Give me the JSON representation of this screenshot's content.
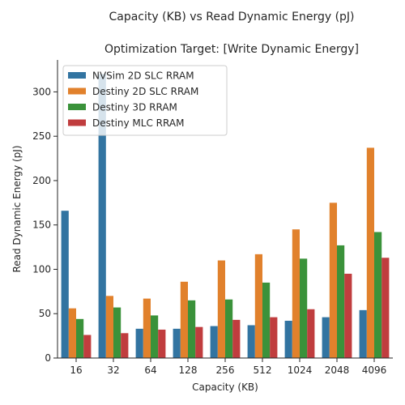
{
  "chart_data": {
    "type": "bar",
    "title": "Capacity (KB) vs Read Dynamic Energy (pJ)",
    "subtitle": "Optimization Target: [Write Dynamic Energy]",
    "xlabel": "Capacity (KB)",
    "ylabel": "Read Dynamic Energy (pJ)",
    "categories": [
      "16",
      "32",
      "64",
      "128",
      "256",
      "512",
      "1024",
      "2048",
      "4096"
    ],
    "ylim": [
      0,
      336
    ],
    "yticks": [
      0,
      50,
      100,
      150,
      200,
      250,
      300
    ],
    "legend_position": "top-left",
    "series": [
      {
        "name": "NVSim 2D SLC RRAM",
        "color": "#3274a1",
        "values": [
          166,
          320,
          33,
          33,
          36,
          37,
          42,
          46,
          54
        ]
      },
      {
        "name": "Destiny 2D SLC RRAM",
        "color": "#e1812c",
        "values": [
          56,
          70,
          67,
          86,
          110,
          117,
          145,
          175,
          237
        ]
      },
      {
        "name": "Destiny 3D RRAM",
        "color": "#3a923a",
        "values": [
          44,
          57,
          48,
          65,
          66,
          85,
          112,
          127,
          142
        ]
      },
      {
        "name": "Destiny MLC RRAM",
        "color": "#c03d3e",
        "values": [
          26,
          28,
          32,
          35,
          43,
          46,
          55,
          95,
          113
        ]
      }
    ]
  }
}
